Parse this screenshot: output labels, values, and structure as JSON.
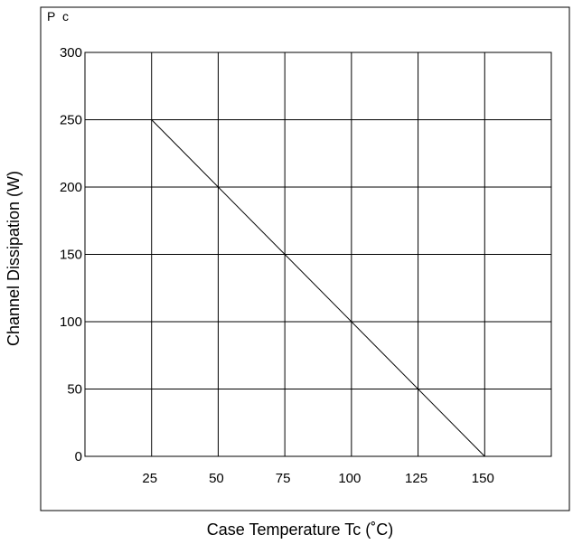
{
  "chart_data": {
    "type": "line",
    "corner_label": "P c",
    "xlabel": "Case Temperature Tc (˚C)",
    "ylabel": "Channel Dissipation (W)",
    "xlim": [
      0,
      175
    ],
    "ylim": [
      0,
      300
    ],
    "x_ticks": [
      "25",
      "50",
      "75",
      "100",
      "125",
      "150"
    ],
    "x_tick_values": [
      25,
      50,
      75,
      100,
      125,
      150
    ],
    "y_ticks": [
      "300",
      "250",
      "200",
      "150",
      "100",
      "50",
      "0"
    ],
    "y_tick_values": [
      300,
      250,
      200,
      150,
      100,
      50,
      0
    ],
    "grid": true,
    "series": [
      {
        "x": [
          25,
          150
        ],
        "y": [
          250,
          0
        ]
      }
    ]
  }
}
